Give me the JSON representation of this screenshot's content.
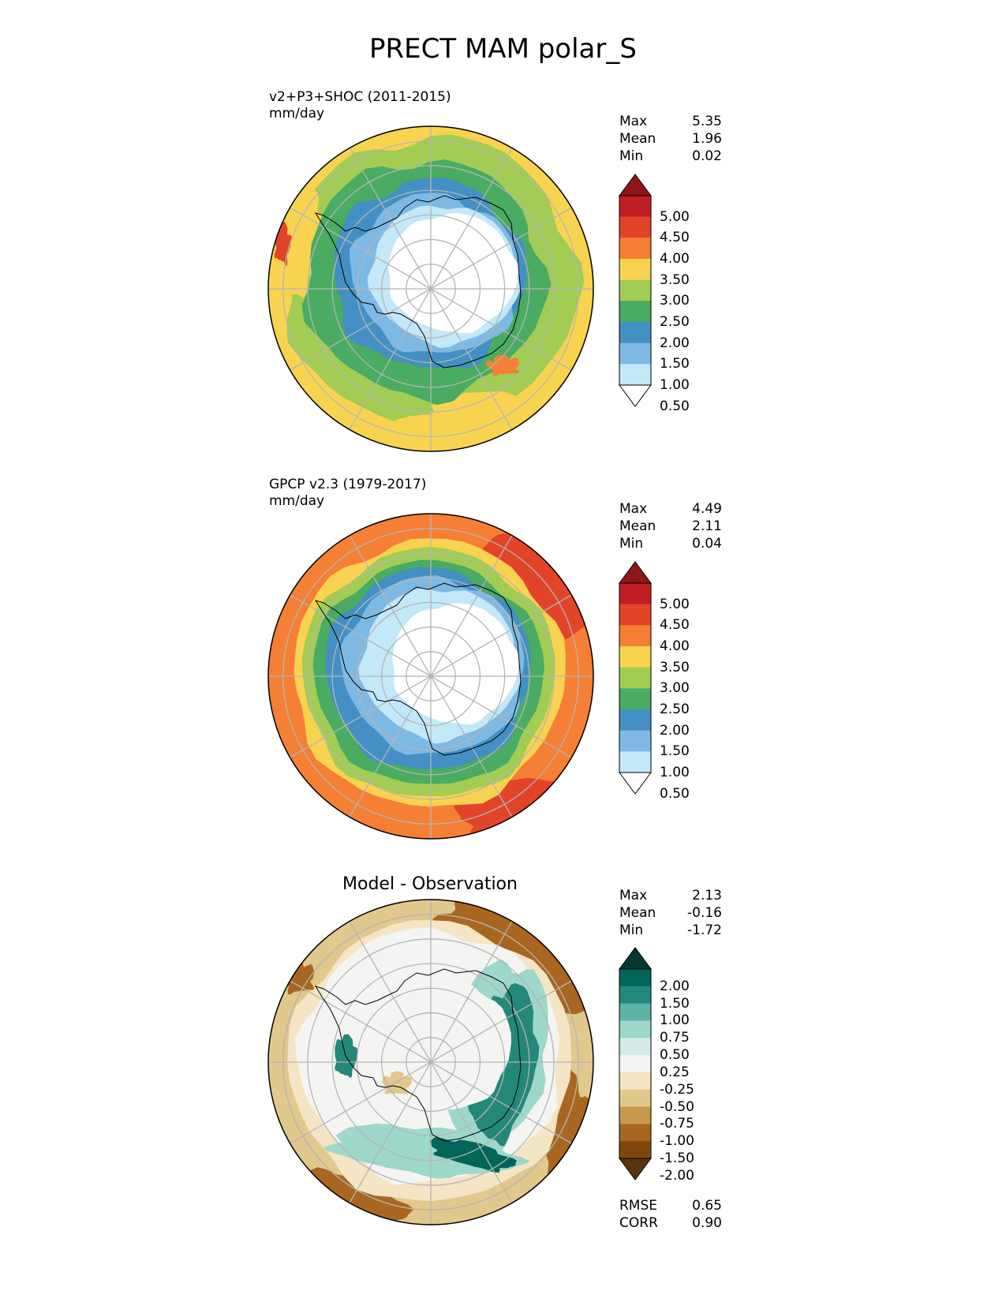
{
  "figure_title": "PRECT MAM polar_S",
  "colors": {
    "precip": [
      "#ffffff",
      "#c3e8f8",
      "#7eb9e4",
      "#4490c4",
      "#4aab62",
      "#a2cc54",
      "#f8d350",
      "#f57f34",
      "#e2442a",
      "#c11f24",
      "#8e161a"
    ],
    "diff": [
      "#5a3408",
      "#80470c",
      "#a96620",
      "#c59a4c",
      "#e1c88c",
      "#f4e5c4",
      "#f4f4f2",
      "#d4ece8",
      "#9dd8ca",
      "#5db3a4",
      "#23877a",
      "#03655a",
      "#04382f"
    ],
    "precip_map": {
      "outer": "#a2cc54",
      "band_warm": "#f8d350",
      "storm": "#4aab62",
      "mid": "#4490c4",
      "inner": "#7eb9e4",
      "coast": "#c3e8f8",
      "continent": "#ffffff"
    },
    "obs_map": {
      "outer": "#f57f34",
      "band1": "#f8d350",
      "band2": "#a2cc54",
      "storm": "#4aab62",
      "mid": "#7eb9e4",
      "coast": "#c3e8f8",
      "continent": "#ffffff",
      "hot": "#e2442a"
    },
    "diff_map": {
      "ring": "#a96620",
      "ring_light": "#e1c88c",
      "base": "#f4f4f2",
      "teal": "#9dd8ca",
      "teal_dark": "#23877a",
      "teal_deep": "#03655a",
      "tan": "#f4e5c4"
    }
  },
  "chart_data": [
    {
      "type": "heatmap",
      "projection": "south-polar-stereographic",
      "title": "v2+P3+SHOC (2011-2015)",
      "units": "mm/day",
      "stats": [
        {
          "label": "Max",
          "value": "5.35"
        },
        {
          "label": "Mean",
          "value": "1.96"
        },
        {
          "label": "Min",
          "value": "0.02"
        }
      ],
      "colorbar_levels": [
        "5.00",
        "4.50",
        "4.00",
        "3.50",
        "3.00",
        "2.50",
        "2.00",
        "1.50",
        "1.00",
        "0.50"
      ],
      "colorbar_extend": "both"
    },
    {
      "type": "heatmap",
      "projection": "south-polar-stereographic",
      "title": "GPCP v2.3 (1979-2017)",
      "units": "mm/day",
      "stats": [
        {
          "label": "Max",
          "value": "4.49"
        },
        {
          "label": "Mean",
          "value": "2.11"
        },
        {
          "label": "Min",
          "value": "0.04"
        }
      ],
      "colorbar_levels": [
        "5.00",
        "4.50",
        "4.00",
        "3.50",
        "3.00",
        "2.50",
        "2.00",
        "1.50",
        "1.00",
        "0.50"
      ],
      "colorbar_extend": "both"
    },
    {
      "type": "heatmap",
      "projection": "south-polar-stereographic",
      "title": "Model - Observation",
      "stats": [
        {
          "label": "Max",
          "value": "2.13"
        },
        {
          "label": "Mean",
          "value": "-0.16"
        },
        {
          "label": "Min",
          "value": "-1.72"
        }
      ],
      "colorbar_levels": [
        "2.00",
        "1.50",
        "1.00",
        "0.75",
        "0.50",
        "0.25",
        "-0.25",
        "-0.50",
        "-0.75",
        "-1.00",
        "-1.50",
        "-2.00"
      ],
      "colorbar_extend": "both",
      "metrics": [
        {
          "label": "RMSE",
          "value": "0.65"
        },
        {
          "label": "CORR",
          "value": "0.90"
        }
      ]
    }
  ]
}
